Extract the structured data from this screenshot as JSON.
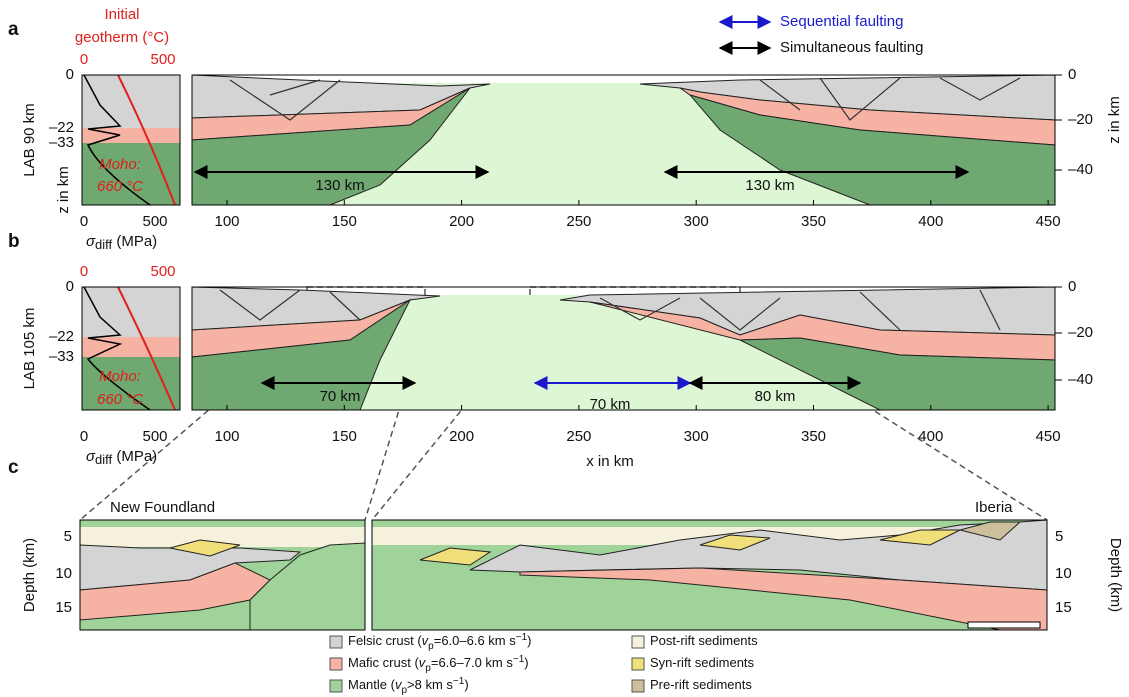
{
  "faulting_legend": {
    "sequential": "Sequential faulting",
    "simultaneous": "Simultaneous faulting"
  },
  "panels": [
    {
      "label": "a",
      "lab": "LAB 90 km",
      "geotherm_title": [
        "Initial",
        "geotherm (°C)"
      ],
      "geotherm_ticks": [
        "0",
        "500"
      ],
      "depth_ticks": [
        "0",
        "–22",
        "–33"
      ],
      "depth_axis": "z in km",
      "moho": [
        "Moho:",
        "660 °C"
      ],
      "stress_ticks": [
        "0",
        "500"
      ],
      "stress_label": {
        "symbol": "σ",
        "sub": "diff",
        "unit": " (MPa)"
      },
      "x_ticks": [
        100,
        150,
        200,
        250,
        300,
        350,
        400,
        450
      ],
      "z_ticks": [
        "0",
        "–20",
        "–40"
      ],
      "z_axis": "z in km",
      "widths": [
        {
          "text": "130 km",
          "color": "#000000"
        },
        {
          "text": "130 km",
          "color": "#000000"
        }
      ]
    },
    {
      "label": "b",
      "lab": "LAB 105 km",
      "geotherm_ticks": [
        "0",
        "500"
      ],
      "depth_ticks": [
        "0",
        "–22",
        "–33"
      ],
      "moho": [
        "Moho:",
        "660 °C"
      ],
      "stress_ticks": [
        "0",
        "500"
      ],
      "stress_label": {
        "symbol": "σ",
        "sub": "diff",
        "unit": " (MPa)"
      },
      "x_ticks": [
        100,
        150,
        200,
        250,
        300,
        350,
        400,
        450
      ],
      "z_ticks": [
        "0",
        "–20",
        "–40"
      ],
      "x_axis": "x in km",
      "widths": [
        {
          "text": "70 km",
          "color": "#000000"
        },
        {
          "text": "70 km",
          "color": "#1a1acc"
        },
        {
          "text": "80 km",
          "color": "#000000"
        }
      ]
    }
  ],
  "section": {
    "label": "c",
    "left": "New Foundland",
    "right": "Iberia",
    "depth_axis": "Depth (km)",
    "depth_ticks": [
      "5",
      "10",
      "15"
    ],
    "legend": [
      {
        "name": "Felsic crust (",
        "var": "v",
        "sub": "p",
        "text": "=6.0–6.6 km s",
        "sup": "−1",
        "end": ")",
        "color": "#d4d4d4"
      },
      {
        "name": "Mafic crust (",
        "var": "v",
        "sub": "p",
        "text": "=6.6–7.0 km s",
        "sup": "−1",
        "end": ")",
        "color": "#f6b2a2"
      },
      {
        "name": "Mantle (",
        "var": "v",
        "sub": "p",
        "text": ">8 km s",
        "sup": "−1",
        "end": ")",
        "color": "#9fd39a"
      },
      {
        "name": "Post-rift sediments",
        "color": "#f6f1dc"
      },
      {
        "name": "Syn-rift sediments",
        "color": "#f1df7c"
      },
      {
        "name": "Pre-rift sediments",
        "color": "#cdbf9c"
      }
    ]
  }
}
